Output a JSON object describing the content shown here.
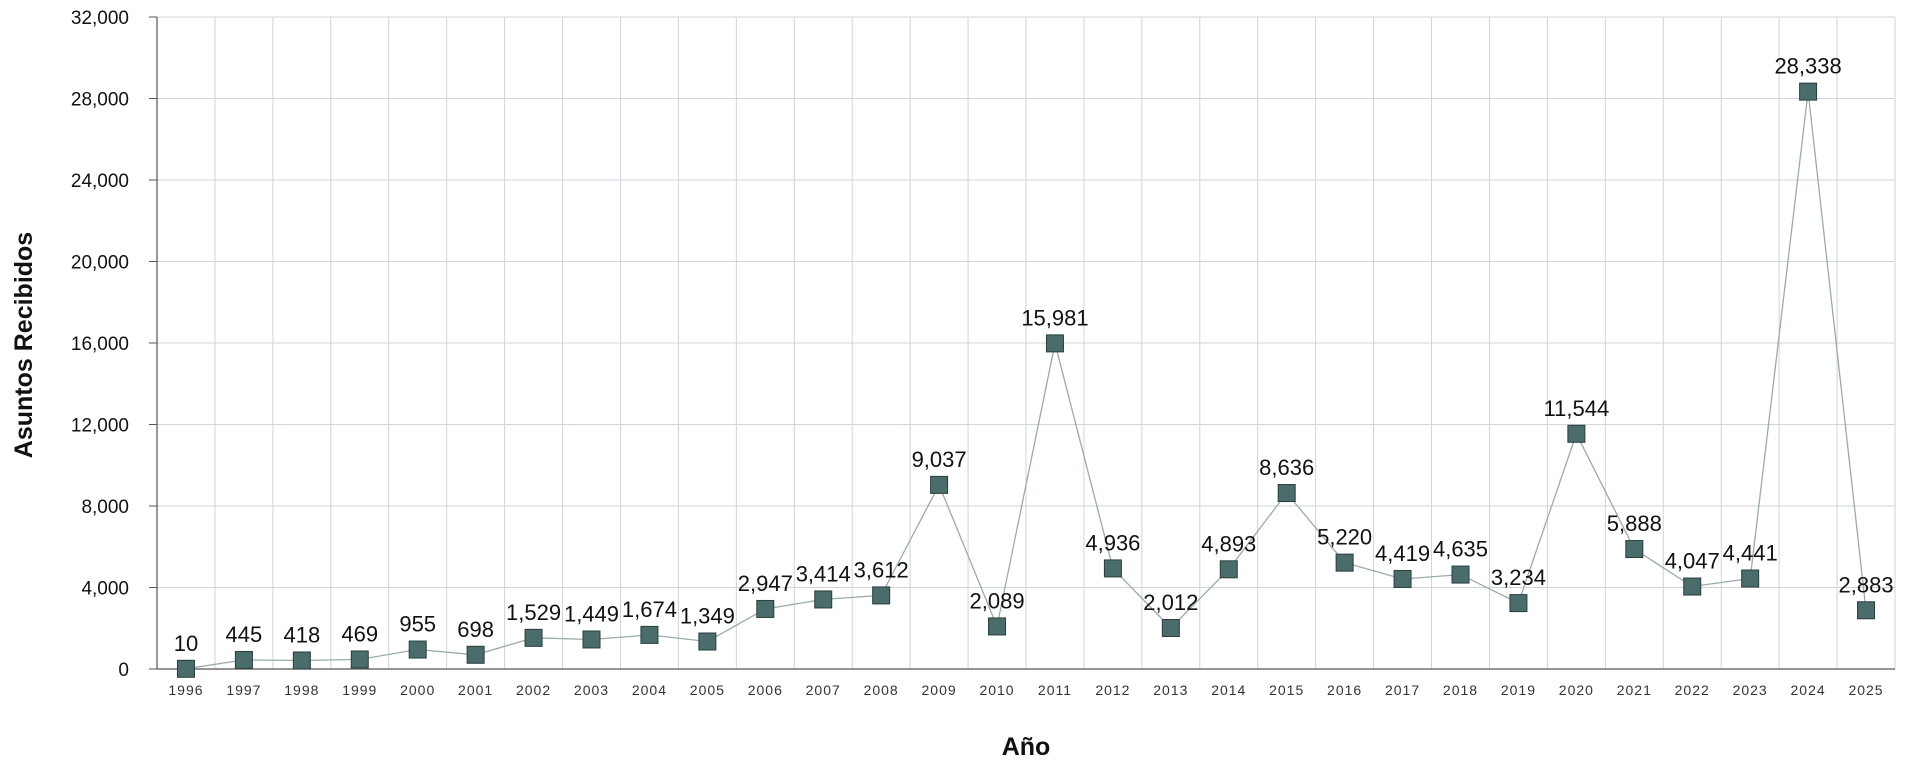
{
  "chart_data": {
    "type": "line",
    "title": "",
    "xlabel": "Año",
    "ylabel": "Asuntos Recibidos",
    "ylim": [
      0,
      32000
    ],
    "yticks": [
      "0",
      "4,000",
      "8,000",
      "12,000",
      "16,000",
      "20,000",
      "24,000",
      "28,000",
      "32,000"
    ],
    "ytick_values": [
      0,
      4000,
      8000,
      12000,
      16000,
      20000,
      24000,
      28000,
      32000
    ],
    "categories": [
      "1996",
      "1997",
      "1998",
      "1999",
      "2000",
      "2001",
      "2002",
      "2003",
      "2004",
      "2005",
      "2006",
      "2007",
      "2008",
      "2009",
      "2010",
      "2011",
      "2012",
      "2013",
      "2014",
      "2015",
      "2016",
      "2017",
      "2018",
      "2019",
      "2020",
      "2021",
      "2022",
      "2023",
      "2024",
      "2025"
    ],
    "series": [
      {
        "values": [
          10,
          445,
          418,
          469,
          955,
          698,
          1529,
          1449,
          1674,
          1349,
          2947,
          3414,
          3612,
          9037,
          2089,
          15981,
          4936,
          2012,
          4893,
          8636,
          5220,
          4419,
          4635,
          3234,
          11544,
          5888,
          4047,
          4441,
          28338,
          2883
        ],
        "labels": [
          "10",
          "445",
          "418",
          "469",
          "955",
          "698",
          "1,529",
          "1,449",
          "1,674",
          "1,349",
          "2,947",
          "3,414",
          "3,612",
          "9,037",
          "2,089",
          "15,981",
          "4,936",
          "2,012",
          "4,893",
          "8,636",
          "5,220",
          "4,419",
          "4,635",
          "3,234",
          "11,544",
          "5,888",
          "4,047",
          "4,441",
          "28,338",
          "2,883"
        ]
      }
    ],
    "grid": true,
    "colors": {
      "line": "#9aabaa",
      "marker_fill": "#4a6d6c",
      "marker_stroke": "#2a3d3c",
      "grid": "#cfd3da",
      "axis": "#555555"
    }
  }
}
